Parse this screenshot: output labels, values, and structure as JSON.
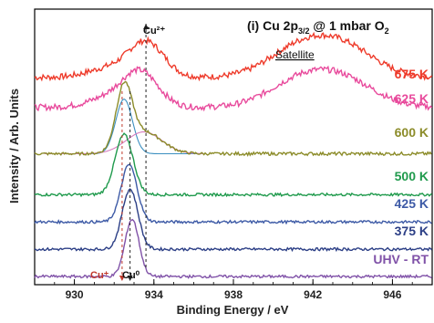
{
  "chart_data": {
    "type": "line",
    "title_main": "(i) Cu 2p",
    "title_sub": "3/2",
    "title_mid": " @ 1 mbar O",
    "title_o2sub": "2",
    "xlabel": "Binding Energy / eV",
    "ylabel": "Intensity / Arb. Units",
    "xlim": [
      928,
      948
    ],
    "x_reversed": false,
    "x_ticks": [
      "930",
      "934",
      "938",
      "942",
      "946"
    ],
    "annotations": {
      "cu2plus": "Cu²⁺",
      "cuplus": "Cu⁺",
      "cu0": "Cu⁰",
      "satellite": "Satellite"
    },
    "reference_lines": [
      {
        "name": "Cu2+",
        "x": 933.6,
        "color": "#222222"
      },
      {
        "name": "Cu+",
        "x": 932.4,
        "color": "#c0392b"
      },
      {
        "name": "Cu0",
        "x": 932.8,
        "color": "#222222"
      }
    ],
    "series": [
      {
        "name": "675 K",
        "color": "#ee3b2b",
        "offset": 7.3,
        "peaks": [
          [
            933.6,
            1.3,
            0.9
          ],
          [
            931.6,
            0.3,
            1.0
          ],
          [
            941.3,
            1.0,
            1.6
          ],
          [
            943.6,
            1.0,
            1.6
          ]
        ]
      },
      {
        "name": "625 K",
        "color": "#e84a9c",
        "offset": 6.2,
        "peaks": [
          [
            933.3,
            1.3,
            0.9
          ],
          [
            931.6,
            0.3,
            1.0
          ],
          [
            941.3,
            0.9,
            1.6
          ],
          [
            943.6,
            0.9,
            1.6
          ]
        ]
      },
      {
        "name": "600 K",
        "color": "#8c8c2a",
        "offset": 4.5,
        "peaks": [
          [
            932.5,
            2.2,
            0.4
          ],
          [
            933.5,
            0.8,
            0.9
          ]
        ]
      },
      {
        "name": "500 K",
        "color": "#1f9a4c",
        "offset": 3.0,
        "peaks": [
          [
            932.5,
            2.2,
            0.45
          ]
        ]
      },
      {
        "name": "425 K",
        "color": "#3d5aa6",
        "offset": 2.0,
        "peaks": [
          [
            932.75,
            2.1,
            0.4
          ]
        ]
      },
      {
        "name": "375 K",
        "color": "#2c3f86",
        "offset": 1.0,
        "peaks": [
          [
            932.8,
            2.2,
            0.4
          ]
        ]
      },
      {
        "name": "UHV - RT",
        "color": "#8052a8",
        "offset": 0.0,
        "peaks": [
          [
            932.9,
            2.1,
            0.35
          ]
        ]
      }
    ],
    "fit_components": [
      {
        "name": "Cu+ component",
        "color": "#3b8fc0",
        "offset": 4.5,
        "peaks": [
          [
            932.5,
            2.0,
            0.42
          ]
        ]
      },
      {
        "name": "Cu2+ component",
        "color": "#d77bbf",
        "offset": 4.5,
        "peaks": [
          [
            933.5,
            0.8,
            0.9
          ]
        ]
      }
    ],
    "ylim": [
      -0.3,
      9.8
    ],
    "grid": false
  }
}
